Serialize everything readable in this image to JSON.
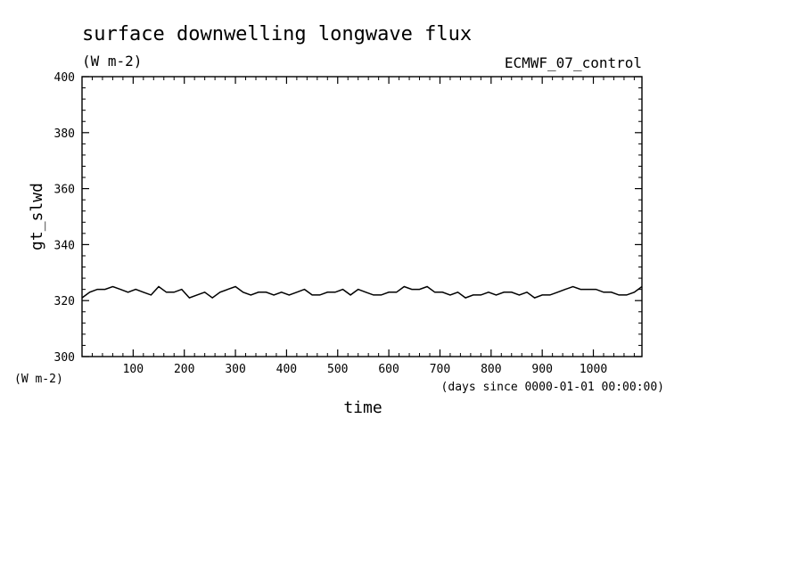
{
  "chart_data": {
    "type": "line",
    "title": "surface downwelling longwave flux",
    "subtitle": "(W m-2)",
    "label_right": "ECMWF_07_control",
    "xlabel": "time",
    "xlabel_units": "(days since 0000-01-01 00:00:00)",
    "ylabel": "gt_slwd",
    "ylabel_units": "(W m-2)",
    "xlim": [
      0,
      1095
    ],
    "ylim": [
      300,
      400
    ],
    "xticks": [
      100,
      200,
      300,
      400,
      500,
      600,
      700,
      800,
      900,
      1000
    ],
    "xtick_labels": [
      "100",
      "200",
      "300",
      "400",
      "500",
      "600",
      "700",
      "800",
      "900",
      "1000"
    ],
    "yticks": [
      300,
      320,
      340,
      360,
      380,
      400
    ],
    "ytick_labels": [
      "300",
      "320",
      "340",
      "360",
      "380",
      "400"
    ],
    "grid": false,
    "line_color": "#000000",
    "series": [
      {
        "x": [
          0,
          15,
          30,
          45,
          60,
          75,
          90,
          105,
          120,
          135,
          150,
          165,
          180,
          195,
          210,
          225,
          240,
          255,
          270,
          285,
          300,
          315,
          330,
          345,
          360,
          375,
          390,
          405,
          420,
          435,
          450,
          465,
          480,
          495,
          510,
          525,
          540,
          555,
          570,
          585,
          600,
          615,
          630,
          645,
          660,
          675,
          690,
          705,
          720,
          735,
          750,
          765,
          780,
          795,
          810,
          825,
          840,
          855,
          870,
          885,
          900,
          915,
          930,
          945,
          960,
          975,
          990,
          1005,
          1020,
          1035,
          1050,
          1065,
          1080,
          1095
        ],
        "values": [
          321,
          323,
          324,
          324,
          325,
          324,
          323,
          324,
          323,
          322,
          325,
          323,
          323,
          324,
          321,
          322,
          323,
          321,
          323,
          324,
          325,
          323,
          322,
          323,
          323,
          322,
          323,
          322,
          323,
          324,
          322,
          322,
          323,
          323,
          324,
          322,
          324,
          323,
          322,
          322,
          323,
          323,
          325,
          324,
          324,
          325,
          323,
          323,
          322,
          323,
          321,
          322,
          322,
          323,
          322,
          323,
          323,
          322,
          323,
          321,
          322,
          322,
          323,
          324,
          325,
          324,
          324,
          324,
          323,
          323,
          322,
          322,
          323,
          325
        ]
      }
    ]
  }
}
